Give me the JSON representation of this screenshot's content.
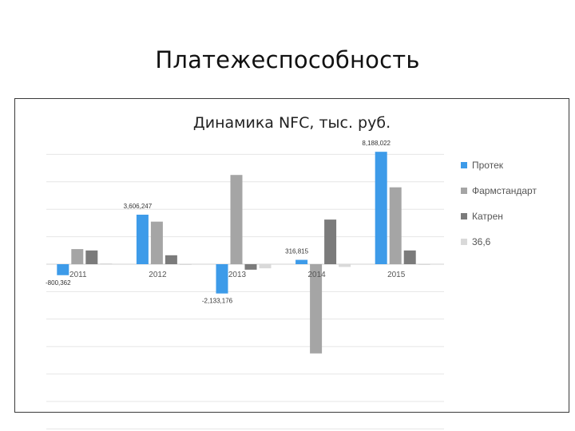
{
  "slide": {
    "title": "Платежеспособность"
  },
  "chart_data": {
    "type": "bar",
    "title": "Динамика NFC, тыс. руб.",
    "categories": [
      "2011",
      "2012",
      "2013",
      "2014",
      "2015"
    ],
    "ylim": [
      -12000000,
      8600000
    ],
    "grid": true,
    "legend_position": "right",
    "series": [
      {
        "name": "Протек",
        "color": "#3d9be9",
        "values": [
          -800362,
          3606247,
          -2133176,
          316815,
          8188022
        ],
        "data_labels": [
          "-800,362",
          "3,606,247",
          "-2,133,176",
          "316,815",
          "8,188,022"
        ]
      },
      {
        "name": "Фармстандарт",
        "color": "#a5a5a5",
        "values": [
          1100000,
          3100000,
          6500000,
          -6500000,
          5600000
        ]
      },
      {
        "name": "Катрен",
        "color": "#7b7b7b",
        "values": [
          1000000,
          650000,
          -400000,
          3250000,
          1000000
        ]
      },
      {
        "name": "36,6",
        "color": "#d9d9d9",
        "values": [
          60000,
          0,
          -300000,
          -200000,
          -40000
        ]
      }
    ]
  }
}
